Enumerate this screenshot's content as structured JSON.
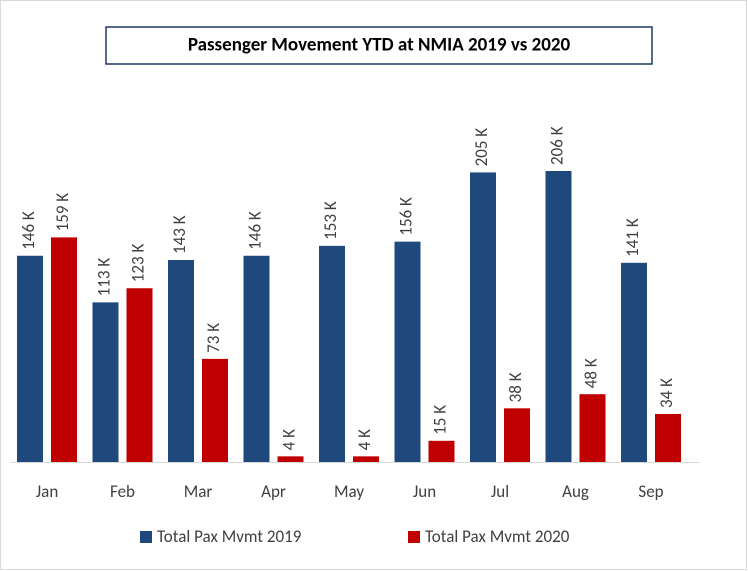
{
  "chart_data": {
    "type": "bar",
    "title": "Passenger Movement YTD at NMIA 2019 vs 2020",
    "categories": [
      "Jan",
      "Feb",
      "Mar",
      "Apr",
      "May",
      "Jun",
      "Jul",
      "Aug",
      "Sep"
    ],
    "series": [
      {
        "name": "Total Pax Mvmt 2019",
        "color": "#1f497d",
        "values": [
          146,
          113,
          143,
          146,
          153,
          156,
          205,
          206,
          141
        ],
        "value_labels": [
          "146 K",
          "113 K",
          "143 K",
          "146 K",
          "153 K",
          "156 K",
          "205 K",
          "206 K",
          "141 K"
        ]
      },
      {
        "name": "Total Pax Mvmt 2020",
        "color": "#c00000",
        "values": [
          159,
          123,
          73,
          4,
          4,
          15,
          38,
          48,
          34
        ],
        "value_labels": [
          "159 K",
          "123 K",
          "73 K",
          "4 K",
          "4 K",
          "15 K",
          "38 K",
          "48 K",
          "34 K"
        ]
      }
    ],
    "legend": "bottom"
  }
}
